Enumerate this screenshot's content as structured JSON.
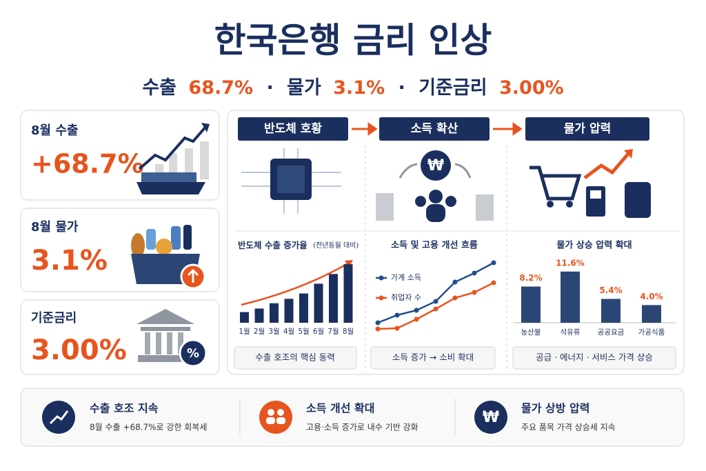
{
  "header": {
    "title": "한국은행 금리 인상",
    "subtitle": [
      {
        "label": "수출",
        "value": "68.7%"
      },
      {
        "label": "물가",
        "value": "3.1%"
      },
      {
        "label": "기준금리",
        "value": "3.00%"
      }
    ],
    "separator": "·"
  },
  "kpis": [
    {
      "label": "8월 수출",
      "value": "+68.7%"
    },
    {
      "label": "8월 물가",
      "value": "3.1%"
    },
    {
      "label": "기준금리",
      "value": "3.00%",
      "badge": "%"
    }
  ],
  "flow": {
    "steps": [
      "반도체 호황",
      "소득 확산",
      "물가 압력"
    ],
    "symbol": "₩"
  },
  "panels": [
    {
      "title": "반도체 수출 증가율",
      "title_note": "(전년동월 대비)",
      "categories": [
        "1월",
        "2월",
        "3월",
        "4월",
        "5월",
        "6월",
        "7월",
        "8월"
      ],
      "values": [
        12,
        16,
        22,
        27,
        33,
        44,
        55,
        66
      ],
      "ylim": [
        0,
        70
      ],
      "color": "#1b2f5e",
      "caption": "수출 호조의 핵심 동력"
    },
    {
      "title": "소득 및 고용 개선 흐름",
      "ylim": [
        0,
        120
      ],
      "series": [
        {
          "name": "가계 소득",
          "color": "#1f4e8c",
          "values": [
            22,
            33,
            40,
            53,
            81,
            94,
            109
          ]
        },
        {
          "name": "취업자 수",
          "color": "#e8541e",
          "values": [
            13,
            14,
            27,
            42,
            58,
            66,
            80
          ]
        }
      ],
      "caption": "소득 증가 → 소비 확대"
    },
    {
      "title": "물가 상승 압력 확대",
      "categories": [
        "농산물",
        "석유류",
        "공공요금",
        "가공식품"
      ],
      "values": [
        8.2,
        11.6,
        5.4,
        4.0
      ],
      "value_labels": [
        "8.2%",
        "11.6%",
        "5.4%",
        "4.0%"
      ],
      "ylim": [
        0,
        12.5
      ],
      "color": "#2b4674",
      "caption": "공급 · 에너지 · 서비스 가격 상승"
    }
  ],
  "footer": [
    {
      "title": "수출 호조 지속",
      "text": "8월 수출 +68.7%로 강한 회복세"
    },
    {
      "title": "소득 개선 확대",
      "text": "고용·소득 증가로 내수 기반 강화"
    },
    {
      "title": "물가 상방 압력",
      "text": "주요 품목 가격 상승세 지속",
      "symbol": "₩"
    }
  ]
}
